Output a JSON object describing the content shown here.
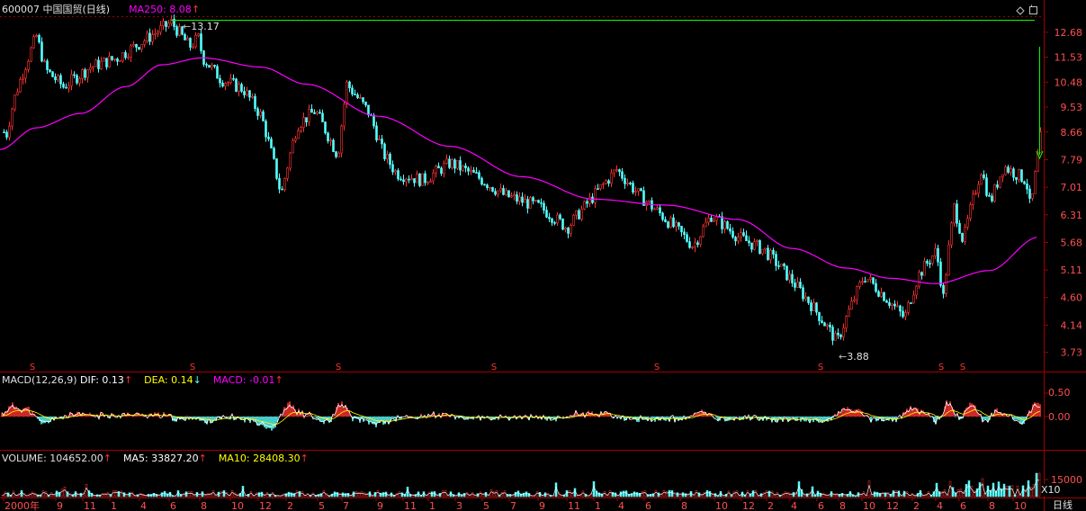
{
  "header": {
    "code": "600007",
    "name": "中国国贸(日线)",
    "ma250_label": "MA250: 8.08",
    "ma250_arrow": "↑"
  },
  "win_buttons": {
    "diamond": "◇",
    "restore": "▢"
  },
  "price_axis": {
    "ticks": [
      "12.68",
      "11.53",
      "10.48",
      "9.53",
      "8.66",
      "7.79",
      "7.01",
      "6.31",
      "5.68",
      "5.11",
      "4.60",
      "4.14",
      "3.73"
    ],
    "tick_values": [
      12.68,
      11.53,
      10.48,
      9.53,
      8.66,
      7.79,
      7.01,
      6.31,
      5.68,
      5.11,
      4.6,
      4.14,
      3.73
    ],
    "high_label": "13.17",
    "low_label": "3.88",
    "s_marker": "S"
  },
  "macd": {
    "label": "MACD(12,26,9)",
    "dif": "DIF: 0.13",
    "dif_arrow": "↑",
    "dea": "DEA: 0.14",
    "dea_arrow": "↓",
    "macd": "MACD: -0.01",
    "macd_arrow": "↑",
    "ticks": [
      "0.50",
      "0.00"
    ]
  },
  "volume": {
    "label": "VOLUME: 104652.00",
    "label_arrow": "↑",
    "ma5": "MA5: 33827.20",
    "ma5_arrow": "↑",
    "ma10": "MA10: 28408.30",
    "ma10_arrow": "↑",
    "tick": "15000",
    "unit": "X10"
  },
  "date_axis": {
    "labels": [
      "2000年",
      "9",
      "11",
      "1",
      "4",
      "6",
      "8",
      "10",
      "12",
      "2",
      "5",
      "7",
      "9",
      "11",
      "1",
      "3",
      "5",
      "7",
      "9",
      "11",
      "1",
      "4",
      "6",
      "8",
      "10",
      "12",
      "2",
      "4",
      "6",
      "8",
      "10",
      "12",
      "2",
      "4",
      "6",
      "8",
      "10"
    ],
    "period": "日线"
  },
  "colors": {
    "up": "#ff3232",
    "down": "#54ffff",
    "ma250": "#ff00ff",
    "dif": "#ffffff",
    "dea": "#ffff00",
    "grid": "#8b0000",
    "axis_text": "#ff5050",
    "green_line": "#00ff00"
  },
  "chart_data": {
    "type": "candlestick",
    "price_range": [
      3.6,
      13.3
    ],
    "high": 13.17,
    "low": 3.88,
    "ma250_current": 8.08,
    "macd_dif": 0.13,
    "macd_dea": 0.14,
    "macd_hist": -0.01,
    "volume_current": 104652.0,
    "volume_ma5": 33827.2,
    "volume_ma10": 28408.3
  }
}
